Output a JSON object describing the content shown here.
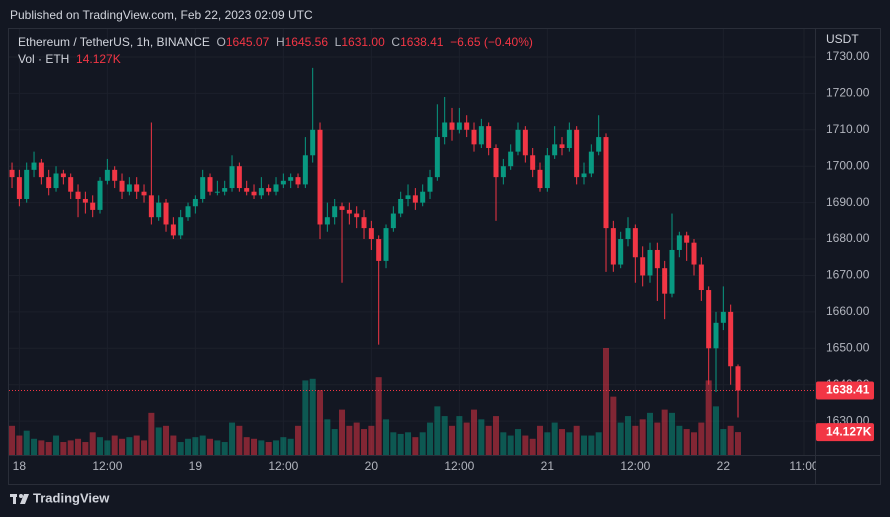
{
  "header": {
    "published": "Published on TradingView.com, Feb 22, 2023 02:09 UTC"
  },
  "chart_data": {
    "type": "candlestick",
    "symbol": "Ethereum / TetherUS, 1h, BINANCE",
    "ohlc_letters": [
      "O",
      "H",
      "L",
      "C"
    ],
    "last_labels": [
      "1645.07",
      "1645.56",
      "1631.00",
      "1638.41"
    ],
    "change_label": "−6.65 (−0.40%)",
    "volume_title": "Vol · ETH",
    "volume_label": "14.127K",
    "y_axis_label": "USDT",
    "up_color": "#089981",
    "down_color": "#f23645",
    "ohlc": [
      [
        1699,
        1701,
        1694,
        1697
      ],
      [
        1697,
        1699,
        1689,
        1691
      ],
      [
        1691,
        1701,
        1690,
        1699
      ],
      [
        1699,
        1704,
        1697,
        1701
      ],
      [
        1701,
        1702,
        1695,
        1697
      ],
      [
        1697,
        1699,
        1692,
        1694
      ],
      [
        1694,
        1700,
        1693,
        1698
      ],
      [
        1698,
        1699,
        1695,
        1697
      ],
      [
        1697,
        1698,
        1691,
        1693
      ],
      [
        1693,
        1695,
        1686,
        1691
      ],
      [
        1691,
        1693,
        1687,
        1690
      ],
      [
        1690,
        1692,
        1686,
        1688
      ],
      [
        1688,
        1697,
        1687,
        1696
      ],
      [
        1696,
        1702,
        1695,
        1699
      ],
      [
        1699,
        1700,
        1694,
        1696
      ],
      [
        1696,
        1698,
        1691,
        1693
      ],
      [
        1693,
        1697,
        1692,
        1695
      ],
      [
        1695,
        1697,
        1691,
        1693
      ],
      [
        1693,
        1695,
        1690,
        1692
      ],
      [
        1692,
        1712,
        1684,
        1686
      ],
      [
        1686,
        1692,
        1685,
        1690
      ],
      [
        1690,
        1691,
        1682,
        1684
      ],
      [
        1684,
        1686,
        1680,
        1681
      ],
      [
        1681,
        1688,
        1680,
        1686
      ],
      [
        1686,
        1690,
        1685,
        1689
      ],
      [
        1689,
        1692,
        1687,
        1691
      ],
      [
        1691,
        1699,
        1690,
        1697
      ],
      [
        1697,
        1698,
        1692,
        1693
      ],
      [
        1693,
        1696,
        1692,
        1693
      ],
      [
        1693,
        1696,
        1692,
        1694
      ],
      [
        1694,
        1703,
        1693,
        1700
      ],
      [
        1700,
        1701,
        1693,
        1694
      ],
      [
        1694,
        1696,
        1692,
        1693
      ],
      [
        1693,
        1695,
        1691,
        1692
      ],
      [
        1692,
        1697,
        1691,
        1694
      ],
      [
        1694,
        1695,
        1692,
        1693
      ],
      [
        1693,
        1697,
        1692,
        1695
      ],
      [
        1695,
        1698,
        1694,
        1696
      ],
      [
        1696,
        1698,
        1694,
        1697
      ],
      [
        1697,
        1698,
        1694,
        1695
      ],
      [
        1695,
        1708,
        1694,
        1703
      ],
      [
        1703,
        1727,
        1701,
        1710
      ],
      [
        1710,
        1712,
        1680,
        1684
      ],
      [
        1684,
        1690,
        1682,
        1686
      ],
      [
        1686,
        1691,
        1684,
        1689
      ],
      [
        1689,
        1690,
        1668,
        1688
      ],
      [
        1688,
        1690,
        1684,
        1687
      ],
      [
        1687,
        1689,
        1683,
        1686
      ],
      [
        1686,
        1688,
        1680,
        1683
      ],
      [
        1683,
        1685,
        1677,
        1680
      ],
      [
        1680,
        1681,
        1651,
        1674
      ],
      [
        1674,
        1684,
        1672,
        1683
      ],
      [
        1683,
        1689,
        1682,
        1687
      ],
      [
        1687,
        1693,
        1686,
        1691
      ],
      [
        1691,
        1695,
        1689,
        1692
      ],
      [
        1692,
        1694,
        1688,
        1690
      ],
      [
        1690,
        1695,
        1689,
        1693
      ],
      [
        1693,
        1699,
        1691,
        1697
      ],
      [
        1697,
        1717,
        1696,
        1708
      ],
      [
        1708,
        1719,
        1706,
        1712
      ],
      [
        1712,
        1716,
        1707,
        1710
      ],
      [
        1710,
        1716,
        1709,
        1712
      ],
      [
        1712,
        1714,
        1708,
        1710
      ],
      [
        1710,
        1712,
        1704,
        1706
      ],
      [
        1706,
        1713,
        1705,
        1711
      ],
      [
        1711,
        1712,
        1703,
        1705
      ],
      [
        1705,
        1706,
        1685,
        1697
      ],
      [
        1697,
        1702,
        1695,
        1700
      ],
      [
        1700,
        1706,
        1699,
        1704
      ],
      [
        1704,
        1712,
        1703,
        1710
      ],
      [
        1710,
        1711,
        1701,
        1703
      ],
      [
        1703,
        1705,
        1697,
        1699
      ],
      [
        1699,
        1701,
        1693,
        1694
      ],
      [
        1694,
        1705,
        1693,
        1703
      ],
      [
        1703,
        1711,
        1702,
        1706
      ],
      [
        1706,
        1708,
        1703,
        1705
      ],
      [
        1705,
        1712,
        1704,
        1710
      ],
      [
        1710,
        1711,
        1695,
        1697
      ],
      [
        1697,
        1701,
        1695,
        1698
      ],
      [
        1698,
        1706,
        1697,
        1704
      ],
      [
        1704,
        1714,
        1703,
        1708
      ],
      [
        1708,
        1709,
        1671,
        1683
      ],
      [
        1683,
        1685,
        1671,
        1673
      ],
      [
        1673,
        1682,
        1672,
        1680
      ],
      [
        1680,
        1686,
        1678,
        1683
      ],
      [
        1683,
        1684,
        1668,
        1675
      ],
      [
        1675,
        1678,
        1667,
        1670
      ],
      [
        1670,
        1679,
        1668,
        1677
      ],
      [
        1677,
        1679,
        1663,
        1672
      ],
      [
        1672,
        1674,
        1658,
        1665
      ],
      [
        1665,
        1687,
        1664,
        1677
      ],
      [
        1677,
        1682,
        1675,
        1681
      ],
      [
        1681,
        1682,
        1674,
        1679
      ],
      [
        1679,
        1680,
        1670,
        1673
      ],
      [
        1673,
        1675,
        1663,
        1666
      ],
      [
        1666,
        1667,
        1640,
        1650
      ],
      [
        1650,
        1660,
        1638,
        1657
      ],
      [
        1657,
        1667,
        1655,
        1660
      ],
      [
        1660,
        1662,
        1640,
        1645.07
      ],
      [
        1645.07,
        1645.56,
        1631,
        1638.41
      ]
    ],
    "volume": [
      18000,
      12000,
      15000,
      10000,
      9000,
      8000,
      12000,
      8000,
      9000,
      10000,
      8000,
      14000,
      11000,
      9000,
      12000,
      10000,
      11000,
      12000,
      9000,
      26000,
      17000,
      18000,
      12000,
      8000,
      10000,
      11000,
      12000,
      10000,
      9000,
      8000,
      20000,
      18000,
      11000,
      10000,
      9000,
      8000,
      9000,
      11000,
      10000,
      18000,
      46000,
      47000,
      40000,
      22000,
      16000,
      28000,
      18000,
      20000,
      16000,
      18000,
      48000,
      22000,
      14000,
      13000,
      14000,
      11000,
      14000,
      20000,
      30000,
      24000,
      18000,
      24000,
      20000,
      28000,
      22000,
      18000,
      24000,
      14000,
      12000,
      16000,
      12000,
      10000,
      18000,
      14000,
      20000,
      16000,
      14000,
      18000,
      12000,
      12000,
      14000,
      66000,
      36000,
      20000,
      24000,
      18000,
      22000,
      26000,
      20000,
      28000,
      26000,
      18000,
      16000,
      14000,
      20000,
      46000,
      30000,
      16000,
      18000,
      14127
    ],
    "xlim": [
      -0.55,
      109.5
    ],
    "xticks": [
      {
        "value": 1,
        "label": "18"
      },
      {
        "value": 13,
        "label": "12:00"
      },
      {
        "value": 25,
        "label": "19"
      },
      {
        "value": 37,
        "label": "12:00"
      },
      {
        "value": 49,
        "label": "20"
      },
      {
        "value": 61,
        "label": "12:00"
      },
      {
        "value": 73,
        "label": "21"
      },
      {
        "value": 85,
        "label": "12:00"
      },
      {
        "value": 97,
        "label": "22"
      },
      {
        "value": 108,
        "label": "11:00"
      }
    ],
    "ylim": [
      1620.7,
      1737.4
    ],
    "yticks": [
      {
        "value": 1630,
        "label": "1630.00"
      },
      {
        "value": 1640,
        "label": "1640.00"
      },
      {
        "value": 1650,
        "label": "1650.00"
      },
      {
        "value": 1660,
        "label": "1660.00"
      },
      {
        "value": 1670,
        "label": "1670.00"
      },
      {
        "value": 1680,
        "label": "1680.00"
      },
      {
        "value": 1690,
        "label": "1690.00"
      },
      {
        "value": 1700,
        "label": "1700.00"
      },
      {
        "value": 1710,
        "label": "1710.00"
      },
      {
        "value": 1720,
        "label": "1720.00"
      },
      {
        "value": 1730,
        "label": "1730.00"
      }
    ],
    "grid": true
  },
  "footer": {
    "brand": "TradingView"
  }
}
